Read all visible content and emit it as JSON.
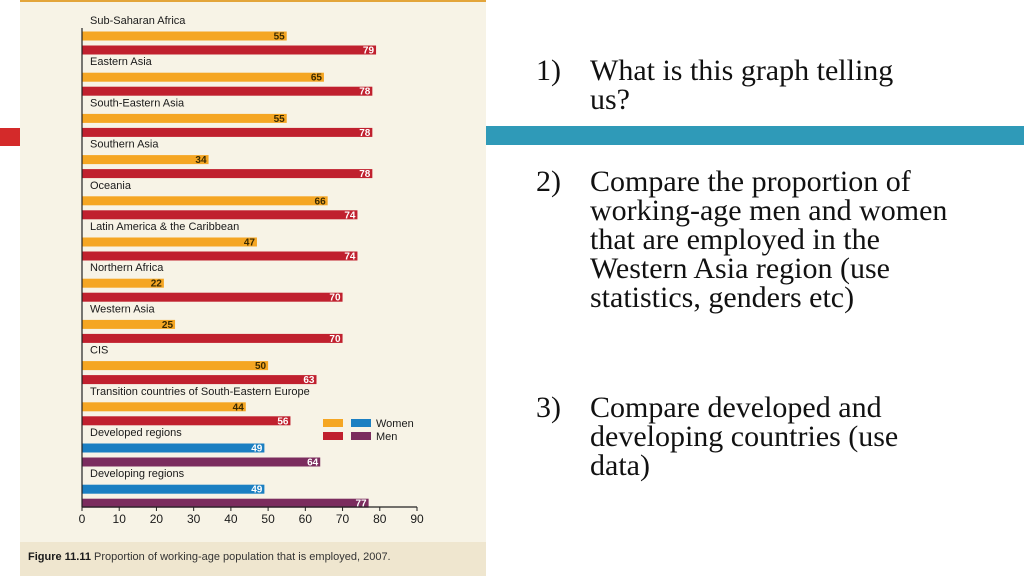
{
  "chart_data": {
    "type": "bar",
    "orientation": "horizontal",
    "categories": [
      "Sub-Saharan Africa",
      "Eastern Asia",
      "South-Eastern Asia",
      "Southern Asia",
      "Oceania",
      "Latin America & the Caribbean",
      "Northern Africa",
      "Western Asia",
      "CIS",
      "Transition countries of South-Eastern Europe",
      "Developed regions",
      "Developing regions"
    ],
    "series": [
      {
        "name": "Women",
        "values": [
          55,
          65,
          55,
          34,
          66,
          47,
          22,
          25,
          50,
          44,
          49,
          49
        ]
      },
      {
        "name": "Men",
        "values": [
          79,
          78,
          78,
          78,
          74,
          74,
          70,
          70,
          63,
          56,
          64,
          77
        ]
      }
    ],
    "xlim": [
      0,
      90
    ],
    "xticks": [
      0,
      10,
      20,
      30,
      40,
      50,
      60,
      70,
      80,
      90
    ],
    "legend": {
      "position": "lower-right",
      "entries": [
        "Women",
        "Men"
      ]
    },
    "colors": {
      "women_regional": "#f5a623",
      "men_regional": "#c0202e",
      "women_aggregate": "#1b7fc2",
      "men_aggregate": "#7b2c5e"
    },
    "aggregate_categories": [
      "Developed regions",
      "Developing regions"
    ]
  },
  "caption": {
    "label": "Figure 11.11",
    "text": " Proportion of working-age population that is employed, 2007."
  },
  "questions": [
    {
      "num": "1)",
      "text": "What is this graph telling us?"
    },
    {
      "num": "2)",
      "text": "Compare the proportion of working-age men and women that are employed in the Western Asia region (use statistics, genders etc)"
    },
    {
      "num": "3)",
      "text": "Compare developed and developing countries (use data)"
    }
  ]
}
